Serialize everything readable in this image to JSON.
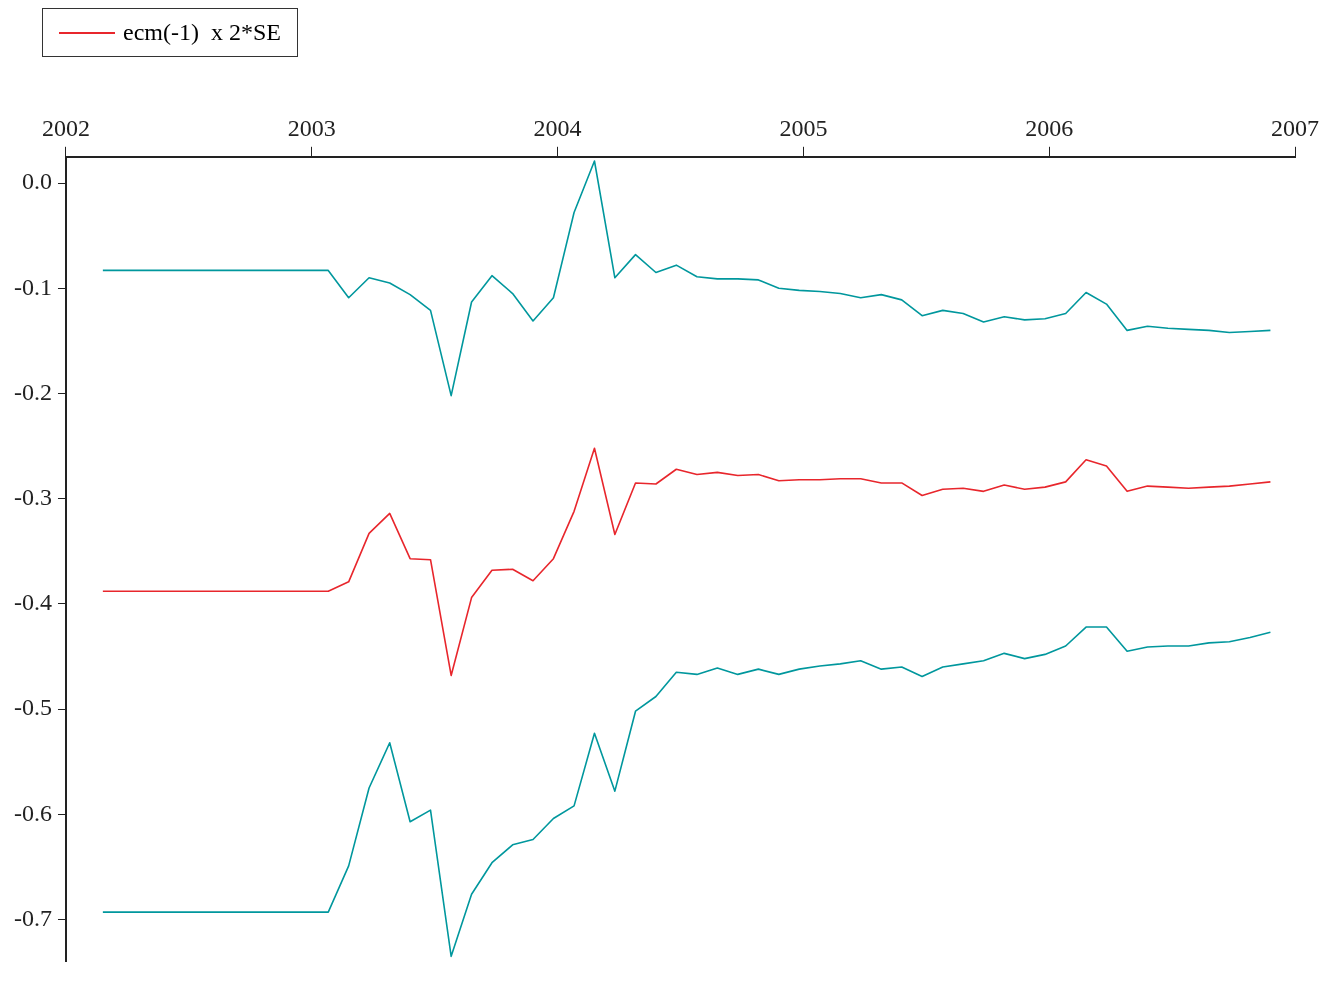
{
  "chart_data": {
    "type": "line",
    "x": [
      2002.15,
      2002.233,
      2002.317,
      2002.4,
      2002.483,
      2002.567,
      2002.65,
      2002.733,
      2002.817,
      2002.9,
      2002.983,
      2003.067,
      2003.15,
      2003.233,
      2003.317,
      2003.4,
      2003.483,
      2003.567,
      2003.65,
      2003.733,
      2003.817,
      2003.9,
      2003.983,
      2004.067,
      2004.15,
      2004.233,
      2004.317,
      2004.4,
      2004.483,
      2004.567,
      2004.65,
      2004.733,
      2004.817,
      2004.9,
      2004.983,
      2005.067,
      2005.15,
      2005.233,
      2005.317,
      2005.4,
      2005.483,
      2005.567,
      2005.65,
      2005.733,
      2005.817,
      2005.9,
      2005.983,
      2006.067,
      2006.15,
      2006.233,
      2006.317,
      2006.4,
      2006.483,
      2006.567,
      2006.65,
      2006.733,
      2006.817,
      2006.9
    ],
    "series": [
      {
        "name": "ecm(-1)  x 2*SE",
        "color": "#e8262c",
        "values": [
          -0.388,
          -0.388,
          -0.388,
          -0.388,
          -0.388,
          -0.388,
          -0.388,
          -0.388,
          -0.388,
          -0.388,
          -0.388,
          -0.388,
          -0.379,
          -0.333,
          -0.314,
          -0.357,
          -0.358,
          -0.468,
          -0.394,
          -0.368,
          -0.367,
          -0.378,
          -0.357,
          -0.312,
          -0.252,
          -0.334,
          -0.285,
          -0.286,
          -0.272,
          -0.277,
          -0.275,
          -0.278,
          -0.277,
          -0.283,
          -0.282,
          -0.282,
          -0.281,
          -0.281,
          -0.285,
          -0.285,
          -0.297,
          -0.291,
          -0.29,
          -0.293,
          -0.287,
          -0.291,
          -0.289,
          -0.284,
          -0.263,
          -0.269,
          -0.293,
          -0.288,
          -0.289,
          -0.29,
          -0.289,
          -0.288,
          -0.286,
          -0.284
        ]
      },
      {
        "color": "#00979d",
        "values": [
          -0.083,
          -0.083,
          -0.083,
          -0.083,
          -0.083,
          -0.083,
          -0.083,
          -0.083,
          -0.083,
          -0.083,
          -0.083,
          -0.083,
          -0.109,
          -0.09,
          -0.095,
          -0.106,
          -0.121,
          -0.202,
          -0.113,
          -0.088,
          -0.105,
          -0.131,
          -0.109,
          -0.028,
          0.021,
          -0.09,
          -0.068,
          -0.085,
          -0.078,
          -0.089,
          -0.091,
          -0.091,
          -0.092,
          -0.1,
          -0.102,
          -0.103,
          -0.105,
          -0.109,
          -0.106,
          -0.111,
          -0.126,
          -0.121,
          -0.124,
          -0.132,
          -0.127,
          -0.13,
          -0.129,
          -0.124,
          -0.104,
          -0.115,
          -0.14,
          -0.136,
          -0.138,
          -0.139,
          -0.14,
          -0.142,
          -0.141,
          -0.14
        ]
      },
      {
        "color": "#00979d",
        "values": [
          -0.693,
          -0.693,
          -0.693,
          -0.693,
          -0.693,
          -0.693,
          -0.693,
          -0.693,
          -0.693,
          -0.693,
          -0.693,
          -0.693,
          -0.649,
          -0.575,
          -0.532,
          -0.607,
          -0.596,
          -0.735,
          -0.676,
          -0.646,
          -0.629,
          -0.624,
          -0.604,
          -0.592,
          -0.523,
          -0.578,
          -0.502,
          -0.488,
          -0.465,
          -0.467,
          -0.461,
          -0.467,
          -0.462,
          -0.467,
          -0.462,
          -0.459,
          -0.457,
          -0.454,
          -0.462,
          -0.46,
          -0.469,
          -0.46,
          -0.457,
          -0.454,
          -0.447,
          -0.452,
          -0.448,
          -0.44,
          -0.422,
          -0.422,
          -0.445,
          -0.441,
          -0.44,
          -0.44,
          -0.437,
          -0.436,
          -0.432,
          -0.427
        ]
      }
    ],
    "xlim": [
      2002,
      2007
    ],
    "xticks": [
      2002,
      2003,
      2004,
      2005,
      2006,
      2007
    ],
    "ylim": [
      -0.74,
      0.025
    ],
    "yticks": [
      {
        "value": 0,
        "label": "0.0"
      },
      -0.1,
      -0.2,
      -0.3,
      -0.4,
      -0.5,
      -0.6,
      -0.7
    ],
    "grid": false,
    "legend": "top left",
    "marker": "none",
    "line_style": "solid"
  }
}
